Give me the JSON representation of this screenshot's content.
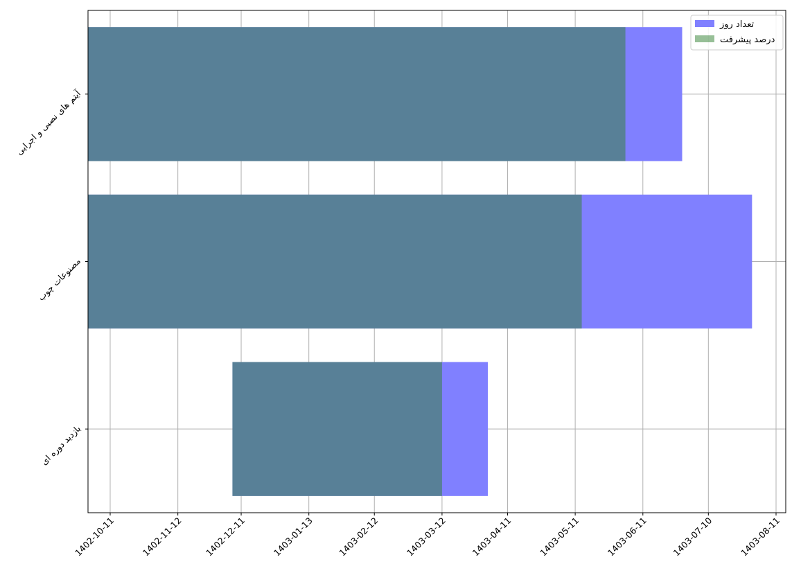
{
  "chart_data": {
    "type": "bar",
    "orientation": "horizontal",
    "stacked": false,
    "categories": [
      "آیتم های نصبی و اجرایی",
      "مصنوعات چوب",
      "بازدید دوره ای"
    ],
    "x_tick_labels": [
      "1402-10-11",
      "1402-11-12",
      "1402-12-11",
      "1403-01-13",
      "1403-02-12",
      "1403-03-12",
      "1403-04-11",
      "1403-05-11",
      "1403-06-11",
      "1403-07-10",
      "1403-08-11"
    ],
    "series": [
      {
        "name": "تعداد روز",
        "color": "#8080ff",
        "start": [
          "1402-10-01",
          "1402-10-01",
          "1402-12-07"
        ],
        "end": [
          "1403-06-29",
          "1403-07-30",
          "1403-03-33"
        ]
      },
      {
        "name": "درصد پیشرفت",
        "color": "#2f7f2f",
        "opacity": 0.5,
        "start": [
          "1402-10-01",
          "1402-10-01",
          "1402-12-07"
        ],
        "end": [
          "1403-06-03",
          "1403-05-14",
          "1403-03-12"
        ]
      }
    ],
    "grid": true,
    "legend": "top-right"
  }
}
